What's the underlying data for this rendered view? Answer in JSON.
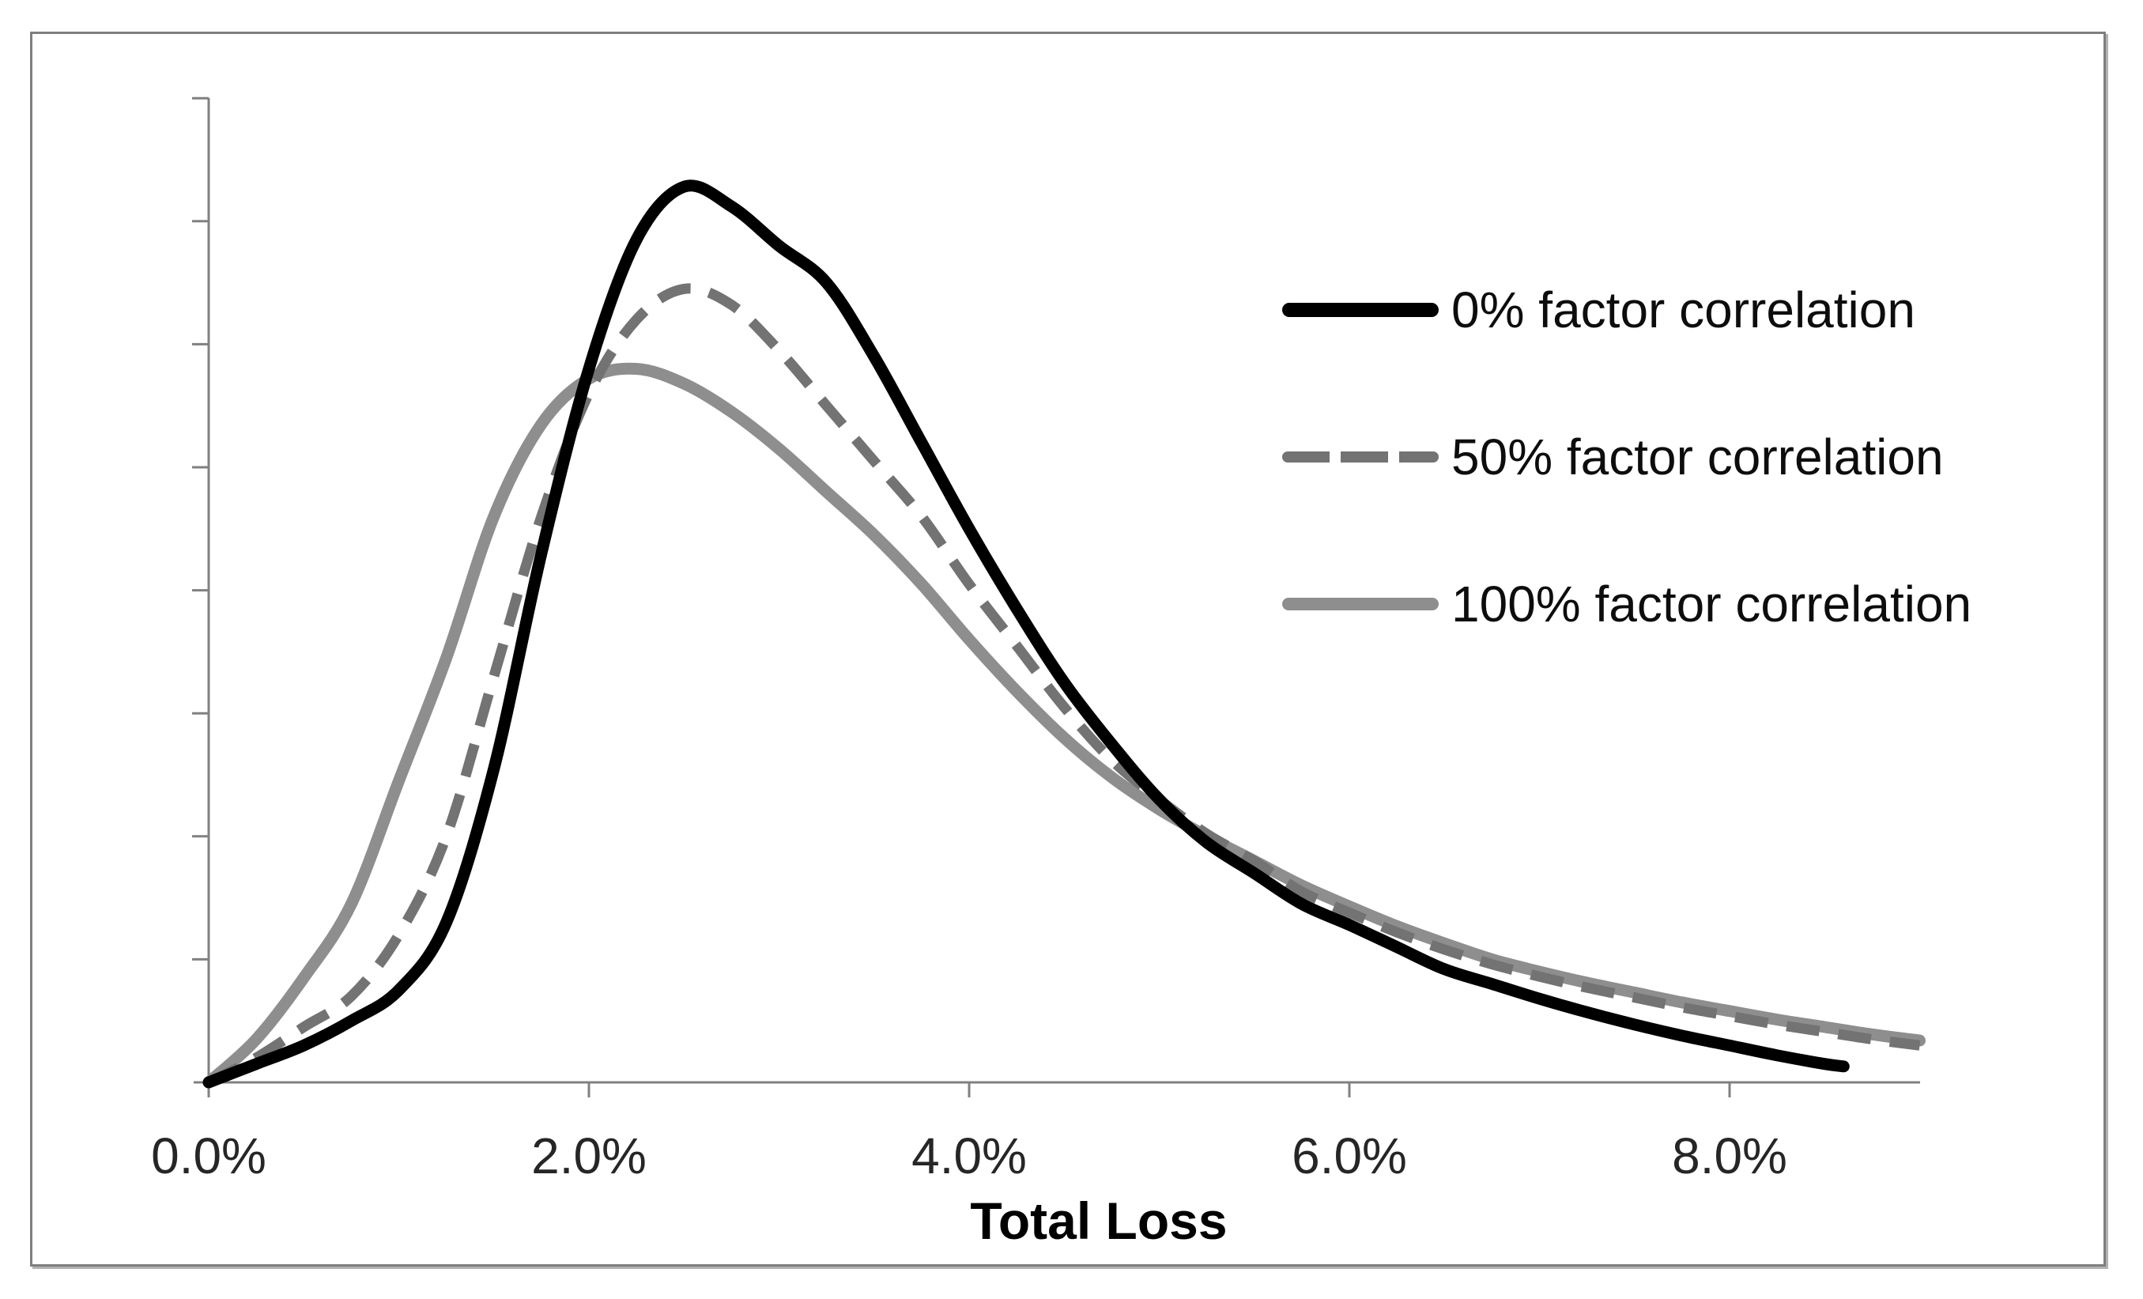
{
  "page": {
    "background": "#ffffff"
  },
  "frame": {
    "border_color": "#7f7f7f",
    "shadow_color": "#b3b3b3"
  },
  "chart_data": {
    "type": "line",
    "title": "",
    "xlabel": "Total Loss",
    "ylabel": "",
    "grid": false,
    "legend_position": "upper-right-inside",
    "axis_color": "#808080",
    "text_color": "#262626",
    "x_axis": {
      "min": 0,
      "max": 9,
      "unit": "percent",
      "tick_values": [
        0,
        2,
        4,
        6,
        8
      ],
      "tick_labels": [
        "0.0%",
        "2.0%",
        "4.0%",
        "6.0%",
        "8.0%"
      ]
    },
    "y_axis": {
      "min": 0,
      "max": 8,
      "tick_count": 8,
      "tick_labels_shown": false,
      "description": "probability density, unlabeled axis; 1.0 = one tick interval"
    },
    "series": [
      {
        "name": "0% factor correlation",
        "line_style": "solid",
        "color": "#000000",
        "stroke_width": 15,
        "x": [
          0,
          0.25,
          0.5,
          0.75,
          1,
          1.25,
          1.5,
          1.75,
          2,
          2.25,
          2.5,
          2.75,
          3,
          3.25,
          3.5,
          3.75,
          4,
          4.25,
          4.5,
          4.75,
          5,
          5.25,
          5.5,
          5.75,
          6,
          6.25,
          6.5,
          6.75,
          7,
          7.25,
          7.5,
          7.75,
          8,
          8.25,
          8.5,
          8.6
        ],
        "y": [
          0,
          0.15,
          0.3,
          0.5,
          0.75,
          1.3,
          2.55,
          4.3,
          5.8,
          6.85,
          7.28,
          7.12,
          6.8,
          6.5,
          5.9,
          5.2,
          4.5,
          3.85,
          3.25,
          2.75,
          2.3,
          1.95,
          1.7,
          1.45,
          1.28,
          1.1,
          0.92,
          0.8,
          0.68,
          0.57,
          0.47,
          0.38,
          0.3,
          0.22,
          0.15,
          0.13
        ]
      },
      {
        "name": "50% factor correlation",
        "line_style": "dashed",
        "color": "#737373",
        "stroke_width": 13,
        "x": [
          0,
          0.25,
          0.5,
          0.75,
          1,
          1.25,
          1.5,
          1.75,
          2,
          2.25,
          2.5,
          2.75,
          3,
          3.25,
          3.5,
          3.75,
          4,
          4.25,
          4.5,
          4.75,
          5,
          5.25,
          5.5,
          5.75,
          6,
          6.25,
          6.5,
          6.75,
          7,
          7.25,
          7.5,
          7.75,
          8,
          8.25,
          8.5,
          8.75,
          9
        ],
        "y": [
          0,
          0.2,
          0.45,
          0.7,
          1.2,
          2.0,
          3.3,
          4.6,
          5.6,
          6.2,
          6.45,
          6.32,
          5.95,
          5.5,
          5.05,
          4.6,
          4.05,
          3.55,
          3.05,
          2.62,
          2.3,
          2.02,
          1.8,
          1.55,
          1.38,
          1.22,
          1.08,
          0.96,
          0.86,
          0.77,
          0.69,
          0.61,
          0.54,
          0.47,
          0.41,
          0.35,
          0.3
        ]
      },
      {
        "name": "100% factor correlation",
        "line_style": "solid",
        "color": "#8e8e8e",
        "stroke_width": 15,
        "x": [
          0,
          0.25,
          0.5,
          0.75,
          1,
          1.25,
          1.5,
          1.75,
          2,
          2.25,
          2.5,
          2.75,
          3,
          3.25,
          3.5,
          3.75,
          4,
          4.25,
          4.5,
          4.75,
          5,
          5.25,
          5.5,
          5.75,
          6,
          6.25,
          6.5,
          6.75,
          7,
          7.25,
          7.5,
          7.75,
          8,
          8.25,
          8.5,
          8.75,
          9
        ],
        "y": [
          0,
          0.35,
          0.85,
          1.45,
          2.45,
          3.45,
          4.6,
          5.35,
          5.72,
          5.8,
          5.68,
          5.45,
          5.15,
          4.8,
          4.45,
          4.05,
          3.6,
          3.18,
          2.8,
          2.48,
          2.22,
          2.0,
          1.8,
          1.6,
          1.43,
          1.27,
          1.13,
          1.0,
          0.9,
          0.81,
          0.73,
          0.65,
          0.58,
          0.51,
          0.45,
          0.39,
          0.34
        ]
      }
    ]
  }
}
